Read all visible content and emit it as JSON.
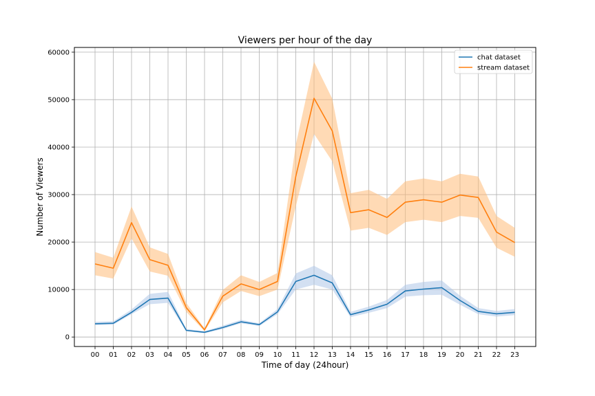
{
  "chart_data": {
    "type": "line",
    "title": "Viewers per hour of the day",
    "xlabel": "Time of day (24hour)",
    "ylabel": "Number of Viewers",
    "categories": [
      "00",
      "01",
      "02",
      "03",
      "04",
      "05",
      "06",
      "07",
      "08",
      "09",
      "10",
      "11",
      "12",
      "13",
      "14",
      "15",
      "16",
      "17",
      "18",
      "19",
      "20",
      "21",
      "22",
      "23"
    ],
    "ylim": [
      -2000,
      61000
    ],
    "yticks": [
      0,
      10000,
      20000,
      30000,
      40000,
      50000,
      60000
    ],
    "ytick_labels": [
      "0",
      "10000",
      "20000",
      "30000",
      "40000",
      "50000",
      "60000"
    ],
    "grid": true,
    "legend_position": "top-right",
    "series": [
      {
        "name": "chat dataset",
        "color": "#1f77b4",
        "band_color": "#aec7e8",
        "values": [
          2800,
          2900,
          5200,
          7900,
          8200,
          1400,
          1000,
          2000,
          3200,
          2600,
          5300,
          11700,
          13000,
          11400,
          4700,
          5700,
          6900,
          9700,
          10100,
          10400,
          7700,
          5400,
          4900,
          5200
        ],
        "lower": [
          2500,
          2600,
          4800,
          6900,
          7200,
          1200,
          800,
          1700,
          2900,
          2300,
          4800,
          10000,
          11000,
          10000,
          4200,
          5100,
          6100,
          8500,
          8800,
          8900,
          6800,
          4800,
          4300,
          4600
        ],
        "upper": [
          3200,
          3300,
          5800,
          9100,
          9500,
          1700,
          1200,
          2400,
          3600,
          2900,
          5900,
          13400,
          15000,
          13000,
          5300,
          6400,
          7800,
          11000,
          11600,
          11900,
          8700,
          6100,
          5500,
          5900
        ]
      },
      {
        "name": "stream dataset",
        "color": "#ff7f0e",
        "band_color": "#ffbb78",
        "values": [
          15400,
          14500,
          24100,
          16300,
          15100,
          6200,
          1500,
          8600,
          11200,
          10000,
          11700,
          33800,
          50300,
          43400,
          26200,
          26800,
          25200,
          28400,
          28900,
          28400,
          29900,
          29400,
          22100,
          19900
        ],
        "lower": [
          13000,
          12300,
          20800,
          13800,
          12900,
          5300,
          1200,
          7300,
          9700,
          8600,
          10000,
          27500,
          42800,
          37000,
          22400,
          23000,
          21500,
          24200,
          24700,
          24200,
          25500,
          25100,
          18800,
          16900
        ],
        "upper": [
          17900,
          16700,
          27500,
          18900,
          17500,
          7200,
          1800,
          9900,
          13000,
          11600,
          13500,
          40500,
          58000,
          50200,
          30300,
          31000,
          29100,
          32800,
          33400,
          32800,
          34400,
          33800,
          25500,
          23000
        ]
      }
    ]
  }
}
